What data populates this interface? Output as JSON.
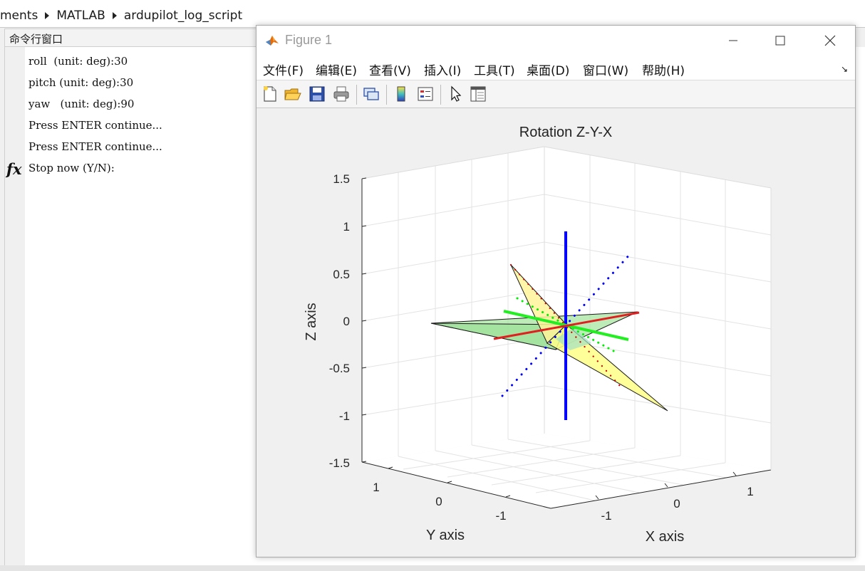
{
  "breadcrumb": {
    "items": [
      "ments",
      "MATLAB",
      "ardupilot_log_script"
    ]
  },
  "command_window": {
    "title": "命令行窗口",
    "lines": [
      "roll  (unit: deg):30",
      "pitch (unit: deg):30",
      "yaw   (unit: deg):90",
      "Press ENTER continue...",
      "Press ENTER continue..."
    ],
    "prompt_symbol": "fx",
    "prompt_text": "Stop now (Y/N):"
  },
  "figure": {
    "title": "Figure 1",
    "menu": [
      "文件(F)",
      "编辑(E)",
      "查看(V)",
      "插入(I)",
      "工具(T)",
      "桌面(D)",
      "窗口(W)",
      "帮助(H)"
    ],
    "toolbar_icons": [
      "new-figure-icon",
      "open-folder-icon",
      "save-icon",
      "print-icon",
      "link-icon",
      "colorbar-icon",
      "legend-icon",
      "pointer-icon",
      "property-editor-icon"
    ]
  },
  "chart_data": {
    "type": "3d-plot",
    "title": "Rotation Z-Y-X",
    "xlabel": "X axis",
    "ylabel": "Y axis",
    "zlabel": "Z axis",
    "xlim": [
      -1.5,
      1.5
    ],
    "ylim": [
      -1.5,
      1.5
    ],
    "zlim": [
      -1.5,
      1.5
    ],
    "xticks": [
      "-1",
      "0",
      "1"
    ],
    "yticks": [
      "1",
      "0",
      "-1"
    ],
    "zticks": [
      "1.5",
      "1",
      "0.5",
      "0",
      "-0.5",
      "-1",
      "-1.5"
    ],
    "grid": true,
    "colors": {
      "x": "#ff0000",
      "y": "#00dd00",
      "z": "#0000ff",
      "plane_green": "#8fe08f",
      "plane_yellow": "#ffff88"
    },
    "rotation_deg": {
      "roll": 30,
      "pitch": 30,
      "yaw": 90
    }
  }
}
